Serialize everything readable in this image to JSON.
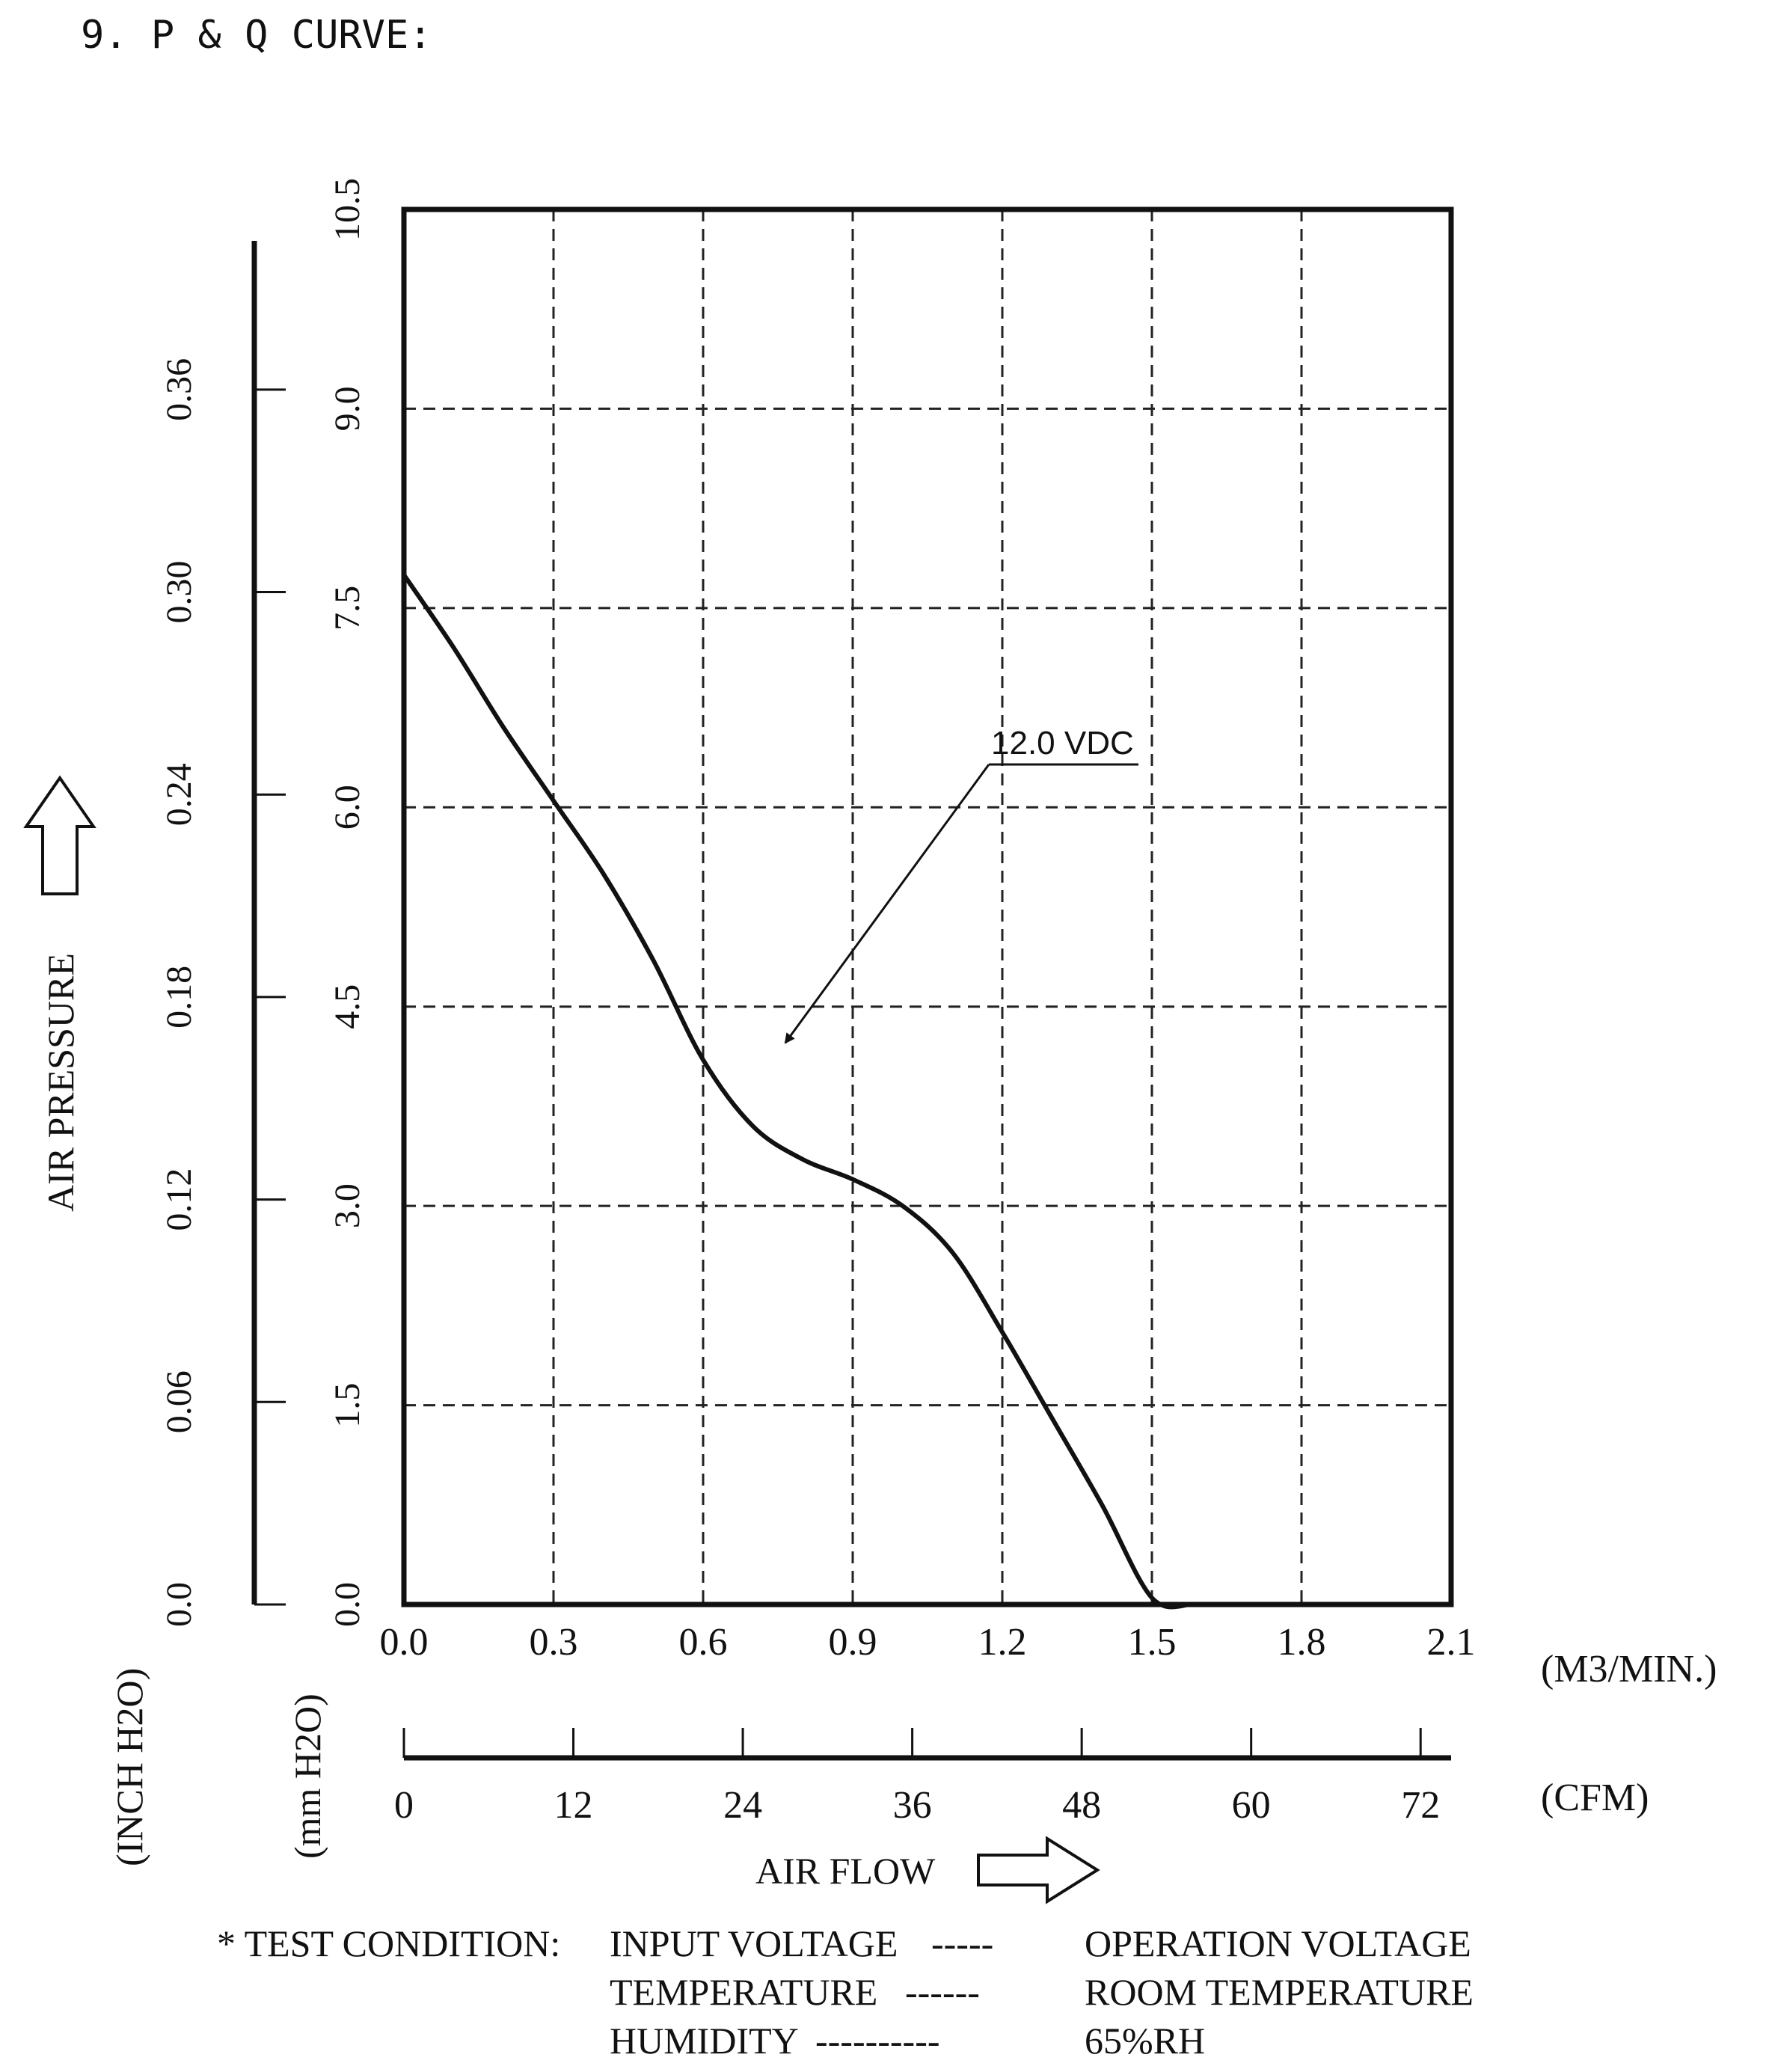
{
  "page_title": "9. P & Q CURVE:",
  "chart_data": {
    "type": "line",
    "title": "9. P & Q CURVE:",
    "ylabel": "AIR PRESSURE",
    "xlabel": "AIR FLOW",
    "y_unit_mm": "(mm H2O)",
    "y_unit_inch": "(INCH H2O)",
    "x_unit_m3": "(M3/MIN.)",
    "x_unit_cfm": "(CFM)",
    "xlim": [
      0,
      2.1
    ],
    "ylim": [
      0,
      10.5
    ],
    "grid": true,
    "x_ticks_m3": [
      "0.0",
      "0.3",
      "0.6",
      "0.9",
      "1.2",
      "1.5",
      "1.8",
      "2.1"
    ],
    "x_ticks_cfm": [
      "0",
      "12",
      "24",
      "36",
      "48",
      "60",
      "72"
    ],
    "y_ticks_mm": [
      "0.0",
      "1.5",
      "3.0",
      "4.5",
      "6.0",
      "7.5",
      "9.0",
      "10.5"
    ],
    "y_ticks_inch": [
      "0.0",
      "0.06",
      "0.12",
      "0.18",
      "0.24",
      "0.30",
      "0.36"
    ],
    "series": [
      {
        "name": "12.0 VDC",
        "x": [
          0.0,
          0.1,
          0.2,
          0.3,
          0.4,
          0.5,
          0.6,
          0.7,
          0.8,
          0.9,
          1.0,
          1.1,
          1.2,
          1.3,
          1.4,
          1.5,
          1.58
        ],
        "y": [
          7.75,
          7.2,
          6.6,
          6.05,
          5.5,
          4.85,
          4.1,
          3.6,
          3.35,
          3.2,
          3.0,
          2.65,
          2.05,
          1.4,
          0.75,
          0.05,
          0.0
        ]
      }
    ],
    "annotation": "12.0 VDC"
  },
  "test_condition": {
    "prefix": "* TEST CONDITION:",
    "rows": [
      {
        "label": "INPUT VOLTAGE",
        "dashes": "-----",
        "value": "OPERATION VOLTAGE"
      },
      {
        "label": "TEMPERATURE",
        "dashes": "------",
        "value": "ROOM TEMPERATURE"
      },
      {
        "label": "HUMIDITY",
        "dashes": "----------",
        "value": "65%RH"
      }
    ]
  }
}
